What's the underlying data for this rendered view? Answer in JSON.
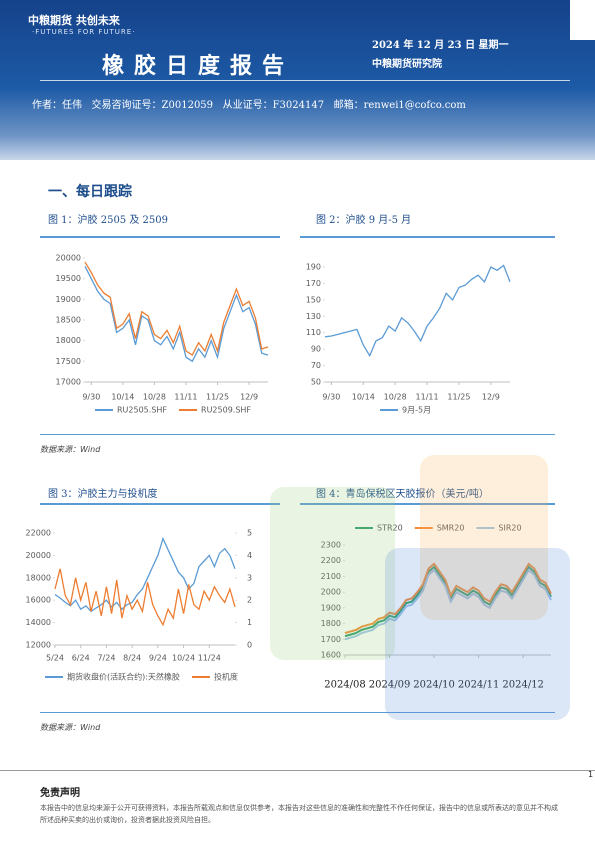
{
  "header": {
    "logo": "中粮期货 共创未来",
    "slogan": "·FUTURES FOR FUTURE·",
    "title": "橡胶日度报告",
    "date": "2024 年 12 月 23 日 星期一",
    "institute": "中粮期货研究院",
    "author": "作者：任伟",
    "license1": "交易咨询证号：Z0012059",
    "license2": "从业证号：F3024147",
    "email": "邮箱：renwei1@cofco.com"
  },
  "section": "一、每日跟踪",
  "figures": [
    "图 1：沪胶 2505 及 2509",
    "图 2：沪胶 9 月-5 月",
    "图 3：沪胶主力与投机度",
    "图 4：青岛保税区天胶报价（美元/吨）"
  ],
  "sources": [
    "数据来源：Wind",
    "数据来源：Wind"
  ],
  "disclaimer": {
    "title": "免责声明",
    "text": "本报告中的信息均来源于公开可获得资料，本报告所载观点和信息仅供参考，本报告对这些信息的准确性和完整性不作任何保证，报告中的信息或所表达的意见并不构成所述品种买卖的出价或询价，投资者据此投资风险自担。"
  },
  "page_number": "1",
  "chart_data": [
    {
      "type": "line",
      "categories": [
        null,
        "9/30",
        null,
        null,
        null,
        null,
        "10/14",
        null,
        null,
        null,
        null,
        "10/28",
        null,
        null,
        null,
        null,
        "11/11",
        null,
        null,
        null,
        null,
        "11/25",
        null,
        null,
        null,
        null,
        "12/9",
        null,
        null,
        null
      ],
      "series": [
        {
          "name": "RU2505.SHF",
          "color": "#5b9bd5",
          "values": [
            19800,
            19500,
            19200,
            19000,
            18900,
            18200,
            18300,
            18500,
            17900,
            18600,
            18500,
            18000,
            17900,
            18100,
            17800,
            18200,
            17600,
            17500,
            17800,
            17600,
            18000,
            17600,
            18300,
            18700,
            19100,
            18700,
            18800,
            18400,
            17700,
            17650
          ]
        },
        {
          "name": "RU2509.SHF",
          "color": "#ed7d31",
          "values": [
            19900,
            19650,
            19350,
            19150,
            19050,
            18300,
            18400,
            18650,
            18050,
            18700,
            18600,
            18150,
            18050,
            18250,
            17950,
            18350,
            17750,
            17650,
            17950,
            17750,
            18150,
            17750,
            18450,
            18850,
            19250,
            18850,
            18950,
            18550,
            17800,
            17850
          ]
        }
      ],
      "ylim": [
        17000,
        20000
      ],
      "yticks": [
        17000,
        17500,
        18000,
        18500,
        19000,
        19500,
        20000
      ],
      "legend": "bottom"
    },
    {
      "type": "line",
      "categories": [
        null,
        "9/30",
        null,
        null,
        null,
        null,
        "10/14",
        null,
        null,
        null,
        null,
        "10/28",
        null,
        null,
        null,
        null,
        "11/11",
        null,
        null,
        null,
        null,
        "11/25",
        null,
        null,
        null,
        null,
        "12/9",
        null,
        null,
        null
      ],
      "series": [
        {
          "name": "9月-5月",
          "color": "#5b9bd5",
          "values": [
            105,
            106,
            108,
            110,
            112,
            114,
            95,
            82,
            100,
            104,
            118,
            112,
            128,
            122,
            112,
            100,
            118,
            128,
            140,
            158,
            150,
            165,
            168,
            175,
            180,
            172,
            190,
            186,
            192,
            172
          ]
        }
      ],
      "ylim": [
        50,
        190
      ],
      "yticks": [
        50,
        70,
        90,
        110,
        130,
        150,
        170,
        190
      ],
      "legend": "bottom"
    },
    {
      "type": "line",
      "categories": [
        "5/24",
        null,
        null,
        null,
        null,
        "6/24",
        null,
        null,
        null,
        null,
        "7/24",
        null,
        null,
        null,
        null,
        "8/24",
        null,
        null,
        null,
        null,
        "9/24",
        null,
        null,
        null,
        null,
        "10/24",
        null,
        null,
        null,
        null,
        "11/24",
        null,
        null,
        null,
        null,
        null
      ],
      "series": [
        {
          "name": "期货收盘价(活跃合约):天然橡胶",
          "color": "#5b9bd5",
          "values": [
            16500,
            16200,
            15800,
            15500,
            16000,
            15200,
            15500,
            15000,
            15300,
            15600,
            16000,
            15400,
            15800,
            15200,
            15600,
            15800,
            16500,
            17000,
            18000,
            19000,
            20000,
            21500,
            20500,
            19500,
            18500,
            18000,
            17000,
            17500,
            19000,
            19500,
            20000,
            19000,
            20200,
            20600,
            20000,
            18800
          ]
        },
        {
          "name": "投机度",
          "color": "#ed7d31",
          "axis": "y2",
          "values": [
            2.5,
            3.4,
            2.2,
            1.8,
            3.0,
            2.0,
            2.8,
            1.5,
            2.4,
            1.3,
            2.6,
            1.4,
            2.9,
            1.2,
            2.2,
            1.6,
            2.0,
            1.5,
            2.8,
            1.8,
            1.3,
            0.9,
            1.6,
            1.2,
            2.5,
            1.4,
            2.7,
            1.8,
            1.6,
            2.4,
            2.0,
            2.6,
            2.2,
            1.9,
            2.5,
            1.7
          ]
        }
      ],
      "ylim": [
        12000,
        22000
      ],
      "yticks": [
        12000,
        14000,
        16000,
        18000,
        20000,
        22000
      ],
      "y2lim": [
        0,
        5
      ],
      "y2ticks": [
        0,
        1,
        2,
        3,
        4,
        5
      ],
      "legend": "bottom"
    },
    {
      "type": "line",
      "categories": [
        "2024/08",
        null,
        null,
        null,
        null,
        null,
        null,
        null,
        "2024/09",
        null,
        null,
        null,
        null,
        null,
        null,
        null,
        "2024/10",
        null,
        null,
        null,
        null,
        null,
        null,
        null,
        "2024/11",
        null,
        null,
        null,
        null,
        null,
        null,
        null,
        "2024/12",
        null,
        null,
        null,
        null,
        null
      ],
      "series": [
        {
          "name": "STR20",
          "color": "#2e9e6b",
          "values": [
            1720,
            1730,
            1740,
            1760,
            1770,
            1780,
            1810,
            1820,
            1850,
            1840,
            1880,
            1930,
            1940,
            1980,
            2030,
            2130,
            2160,
            2110,
            2060,
            1960,
            2020,
            2000,
            1980,
            2010,
            1990,
            1940,
            1920,
            1980,
            2030,
            2020,
            1980,
            2040,
            2100,
            2160,
            2130,
            2060,
            2040,
            1970
          ]
        },
        {
          "name": "SMR20",
          "color": "#f28c38",
          "values": [
            1740,
            1750,
            1760,
            1780,
            1790,
            1800,
            1830,
            1840,
            1870,
            1860,
            1900,
            1950,
            1960,
            2000,
            2050,
            2150,
            2180,
            2130,
            2080,
            1980,
            2040,
            2020,
            2000,
            2030,
            2010,
            1960,
            1940,
            2000,
            2050,
            2040,
            2000,
            2060,
            2120,
            2180,
            2150,
            2080,
            2060,
            1990
          ]
        },
        {
          "name": "SIR20",
          "color": "#9ec5e8",
          "values": [
            1700,
            1710,
            1720,
            1740,
            1750,
            1760,
            1790,
            1800,
            1830,
            1820,
            1860,
            1910,
            1920,
            1960,
            2010,
            2110,
            2140,
            2090,
            2040,
            1940,
            2000,
            1980,
            1960,
            1990,
            1970,
            1920,
            1900,
            1960,
            2010,
            2000,
            1960,
            2020,
            2080,
            2140,
            2110,
            2040,
            2020,
            1950
          ]
        }
      ],
      "ylim": [
        1600,
        2300
      ],
      "yticks": [
        1600,
        1700,
        1800,
        1900,
        2000,
        2100,
        2200,
        2300
      ],
      "legend": "top"
    }
  ]
}
